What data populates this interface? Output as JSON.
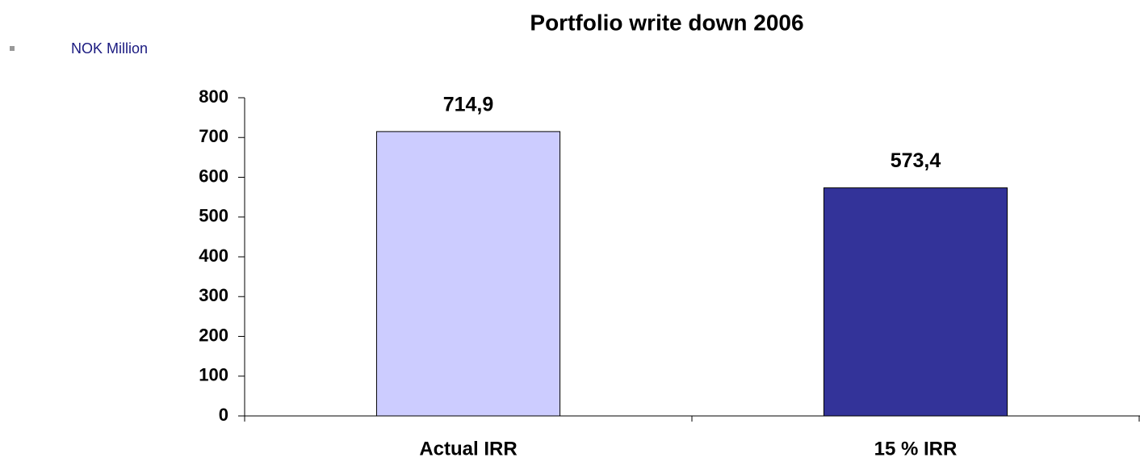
{
  "chart_data": {
    "type": "bar",
    "title": "Portfolio write down 2006",
    "subtitle": "NOK Million",
    "categories": [
      "Actual IRR",
      "15 % IRR"
    ],
    "values": [
      714.9,
      573.4
    ],
    "value_labels": [
      "714,9",
      "573,4"
    ],
    "colors": [
      "#ccccff",
      "#333399"
    ],
    "ylim": [
      0,
      800
    ],
    "yticks": [
      0,
      100,
      200,
      300,
      400,
      500,
      600,
      700,
      800
    ],
    "grid": false
  }
}
